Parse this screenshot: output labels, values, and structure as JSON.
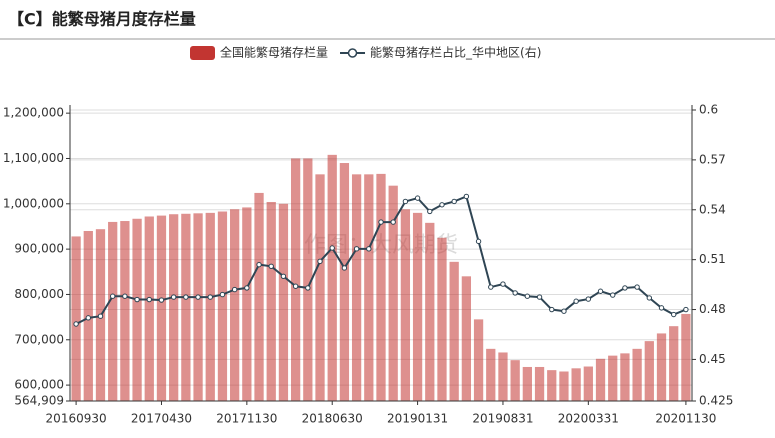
{
  "chart_data": {
    "type": "bar-line",
    "title": "【C】能繁母猪月度存栏量",
    "watermark": "作图：大风期货",
    "categories": [
      "20160930",
      null,
      null,
      null,
      null,
      null,
      null,
      "20170430",
      null,
      null,
      null,
      null,
      null,
      null,
      "20171130",
      null,
      null,
      null,
      null,
      null,
      null,
      "20180630",
      null,
      null,
      null,
      null,
      null,
      null,
      "20190131",
      null,
      null,
      null,
      null,
      null,
      null,
      "20190831",
      null,
      null,
      null,
      null,
      null,
      null,
      "20200331",
      null,
      null,
      null,
      null,
      null,
      null,
      null,
      "20201130"
    ],
    "series": [
      {
        "name": "全国能繁母猪存栏量",
        "type": "bar",
        "color": "#c23531",
        "values": [
          928000,
          940000,
          944000,
          960000,
          962000,
          967000,
          972000,
          974000,
          977000,
          978000,
          979000,
          980000,
          983000,
          988000,
          992000,
          1024000,
          1004000,
          1000000,
          1100000,
          1100000,
          1065000,
          1108000,
          1090000,
          1065000,
          1065000,
          1066000,
          1040000,
          988000,
          980000,
          958000,
          925000,
          872000,
          840000,
          745000,
          680000,
          672000,
          655000,
          640000,
          640000,
          633000,
          630000,
          637000,
          641000,
          658000,
          665000,
          670000,
          680000,
          697000,
          714000,
          730000,
          757000
        ]
      },
      {
        "name": "能繁母猪存栏占比_华中地区(右)",
        "type": "line",
        "axis": "y2",
        "color": "#2f4554",
        "values": [
          0.4713,
          0.475,
          0.476,
          0.488,
          0.488,
          0.486,
          0.486,
          0.4857,
          0.4875,
          0.4875,
          0.4875,
          0.4875,
          0.489,
          0.492,
          0.493,
          0.507,
          0.506,
          0.5,
          0.494,
          0.493,
          0.509,
          0.517,
          0.505,
          0.5165,
          0.5165,
          0.5326,
          0.5326,
          0.545,
          0.547,
          0.539,
          0.543,
          0.545,
          0.548,
          0.521,
          0.4935,
          0.4953,
          0.49,
          0.488,
          0.4875,
          0.48,
          0.479,
          0.485,
          0.4863,
          0.491,
          0.4887,
          0.493,
          0.4935,
          0.487,
          0.481,
          0.477,
          0.48
        ]
      }
    ],
    "ylim": [
      564909,
      1218000
    ],
    "yticks": [
      {
        "value": 564909,
        "label": "564,909"
      },
      {
        "value": 600000,
        "label": "600,000"
      },
      {
        "value": 700000,
        "label": "700,000"
      },
      {
        "value": 800000,
        "label": "800,000"
      },
      {
        "value": 900000,
        "label": "900,000"
      },
      {
        "value": 1000000,
        "label": "1,000,000"
      },
      {
        "value": 1100000,
        "label": "1,100,000"
      },
      {
        "value": 1200000,
        "label": "1,200,000"
      }
    ],
    "y2lim": [
      0.425,
      0.603
    ],
    "y2ticks": [
      0.425,
      0.45,
      0.48,
      0.51,
      0.54,
      0.57,
      0.6
    ],
    "grid": true,
    "legend": "top"
  }
}
